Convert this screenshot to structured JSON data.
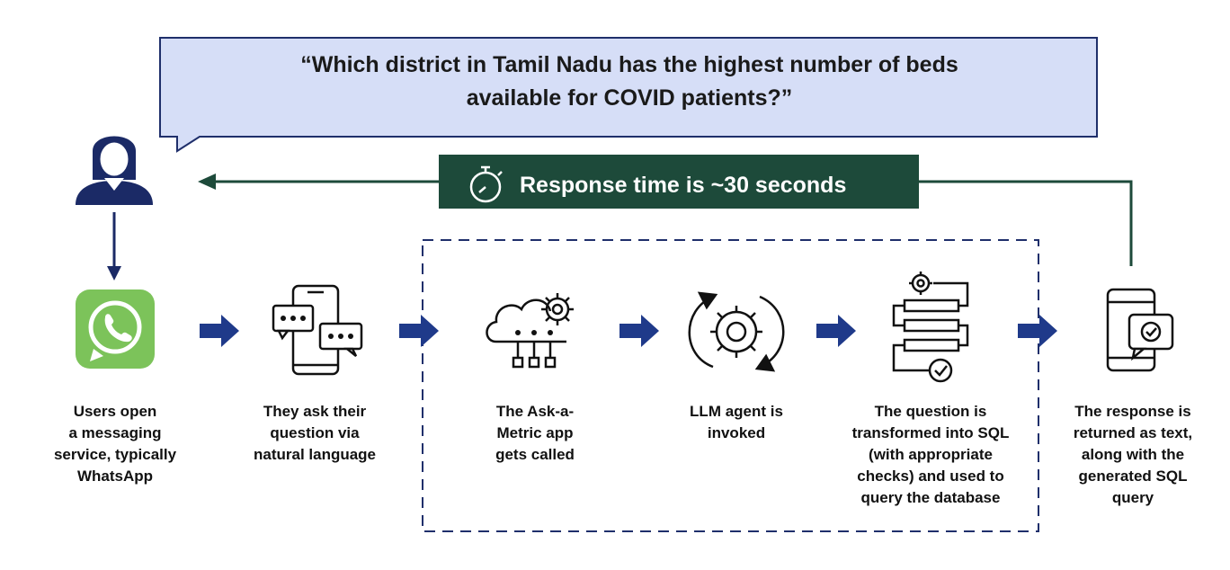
{
  "question": {
    "line1": "“Which district in Tamil Nadu has the highest number of beds",
    "line2": "available for COVID patients?”"
  },
  "banner": {
    "text": "Response time is ~30 seconds"
  },
  "steps": [
    {
      "icon": "whatsapp-icon",
      "lines": [
        "Users open",
        "a messaging",
        "service, typically",
        "WhatsApp"
      ]
    },
    {
      "icon": "phone-chat-icon",
      "lines": [
        "They ask their",
        "question via",
        "natural language"
      ]
    },
    {
      "icon": "cloud-gear-icon",
      "lines": [
        "The Ask-a-",
        "Metric app",
        "gets called"
      ]
    },
    {
      "icon": "gear-cycle-icon",
      "lines": [
        "LLM agent is",
        "invoked"
      ]
    },
    {
      "icon": "sql-process-icon",
      "lines": [
        "The question is",
        "transformed into SQL",
        "(with appropriate",
        "checks) and used to",
        "query the database"
      ]
    },
    {
      "icon": "phone-response-icon",
      "lines": [
        "The response is",
        "returned as text,",
        "along with the",
        "generated SQL",
        "query"
      ]
    }
  ],
  "colors": {
    "bubble_fill": "#d6def7",
    "bubble_stroke": "#1f2f6b",
    "navy": "#1b2a66",
    "green": "#1d4a3a",
    "whatsapp_green": "#7cc35a",
    "arrow_blue": "#1f3a8a"
  }
}
